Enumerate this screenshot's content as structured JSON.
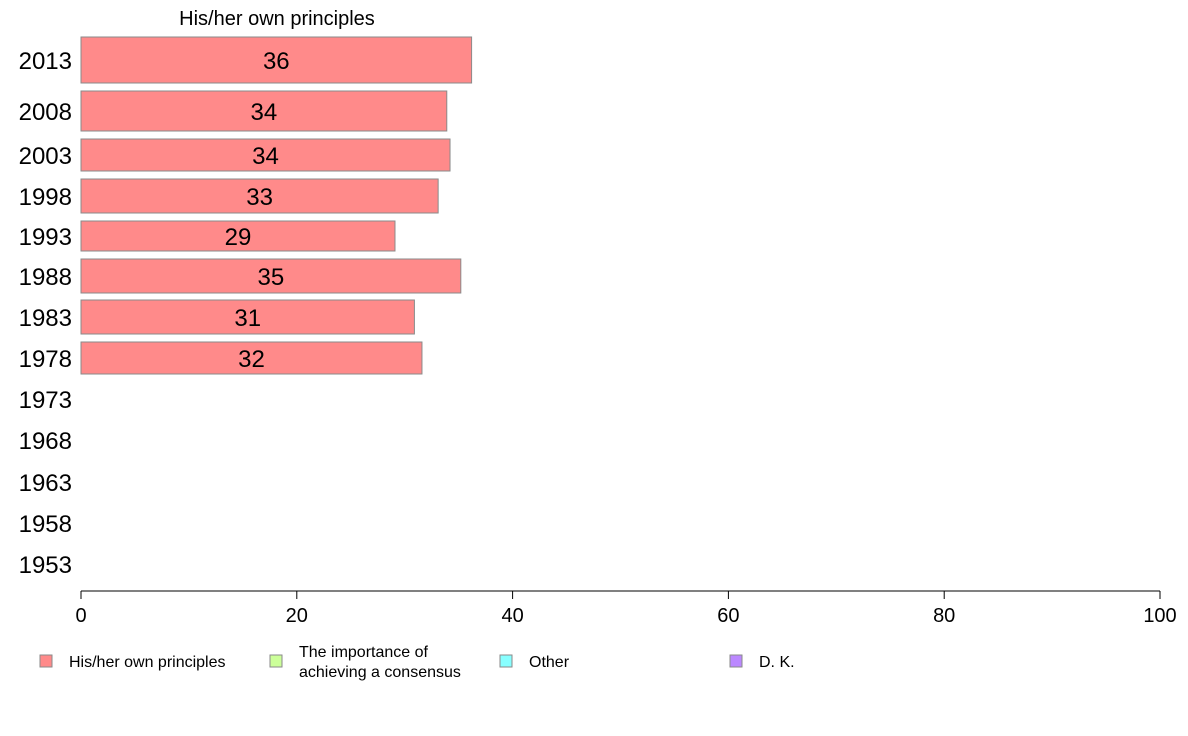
{
  "chart_data": {
    "type": "bar",
    "orientation": "horizontal",
    "title": "His/her own principles",
    "xlim": [
      0,
      100
    ],
    "x_ticks": [
      "0",
      "20",
      "40",
      "60",
      "80",
      "100"
    ],
    "categories": [
      "2013",
      "2008",
      "2003",
      "1998",
      "1993",
      "1988",
      "1983",
      "1978",
      "1973",
      "1968",
      "1963",
      "1958",
      "1953"
    ],
    "series": [
      {
        "name": "His/her own principles",
        "color": "#ff8a8a",
        "values": [
          36.2,
          33.9,
          34.2,
          33.1,
          29.1,
          35.2,
          30.9,
          31.6,
          null,
          null,
          null,
          null,
          null
        ],
        "labels": [
          "36",
          "34",
          "34",
          "33",
          "29",
          "35",
          "31",
          "32",
          "",
          "",
          "",
          "",
          ""
        ]
      }
    ],
    "legend": {
      "position": "bottom",
      "items": [
        {
          "lines": [
            "His/her own principles"
          ],
          "color": "#ff8a8a"
        },
        {
          "lines": [
            "The importance of",
            "achieving a consensus"
          ],
          "color": "#ccff99"
        },
        {
          "lines": [
            "Other"
          ],
          "color": "#88ffff"
        },
        {
          "lines": [
            "D. K."
          ],
          "color": "#bb88ff"
        }
      ]
    }
  }
}
